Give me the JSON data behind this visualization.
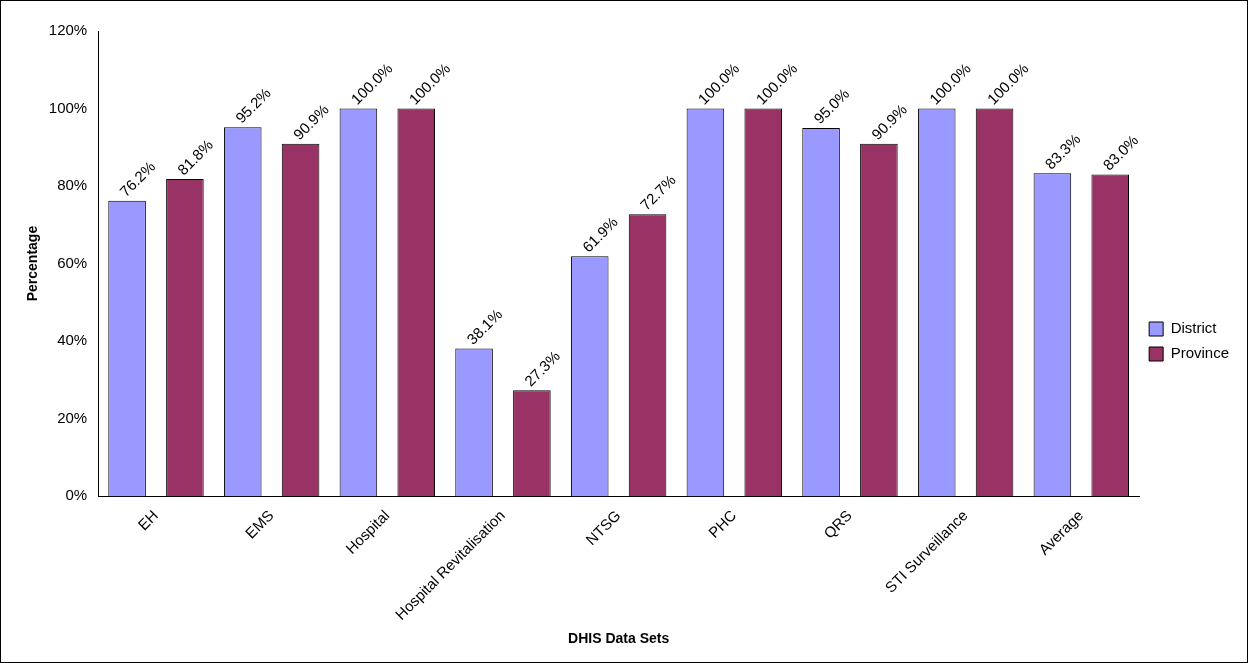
{
  "chart_data": {
    "type": "bar",
    "xlabel": "DHIS Data Sets",
    "ylabel": "Percentage",
    "categories": [
      "EH",
      "EMS",
      "Hospital",
      "Hospital Revitalisation",
      "NTSG",
      "PHC",
      "QRS",
      "STI Surveillance",
      "Average"
    ],
    "series": [
      {
        "name": "District",
        "color": "#9999ff",
        "values": [
          76.2,
          95.2,
          100.0,
          38.1,
          61.9,
          100.0,
          95.0,
          100.0,
          83.3
        ],
        "value_labels": [
          "76.2%",
          "95.2%",
          "100.0%",
          "38.1%",
          "61.9%",
          "100.0%",
          "95.0%",
          "100.0%",
          "83.3%"
        ]
      },
      {
        "name": "Province",
        "color": "#993366",
        "values": [
          81.8,
          90.9,
          100.0,
          27.3,
          72.7,
          100.0,
          90.9,
          100.0,
          83.0
        ],
        "value_labels": [
          "81.8%",
          "90.9%",
          "100.0%",
          "27.3%",
          "72.7%",
          "100.0%",
          "90.9%",
          "100.0%",
          "83.0%"
        ]
      }
    ],
    "ylim": [
      0,
      120
    ],
    "yticks": [
      {
        "value": 0,
        "label": "0%"
      },
      {
        "value": 20,
        "label": "20%"
      },
      {
        "value": 40,
        "label": "40%"
      },
      {
        "value": 60,
        "label": "60%"
      },
      {
        "value": 80,
        "label": "80%"
      },
      {
        "value": 100,
        "label": "100%"
      },
      {
        "value": 120,
        "label": "120%"
      }
    ],
    "grid": false,
    "legend": "right"
  }
}
